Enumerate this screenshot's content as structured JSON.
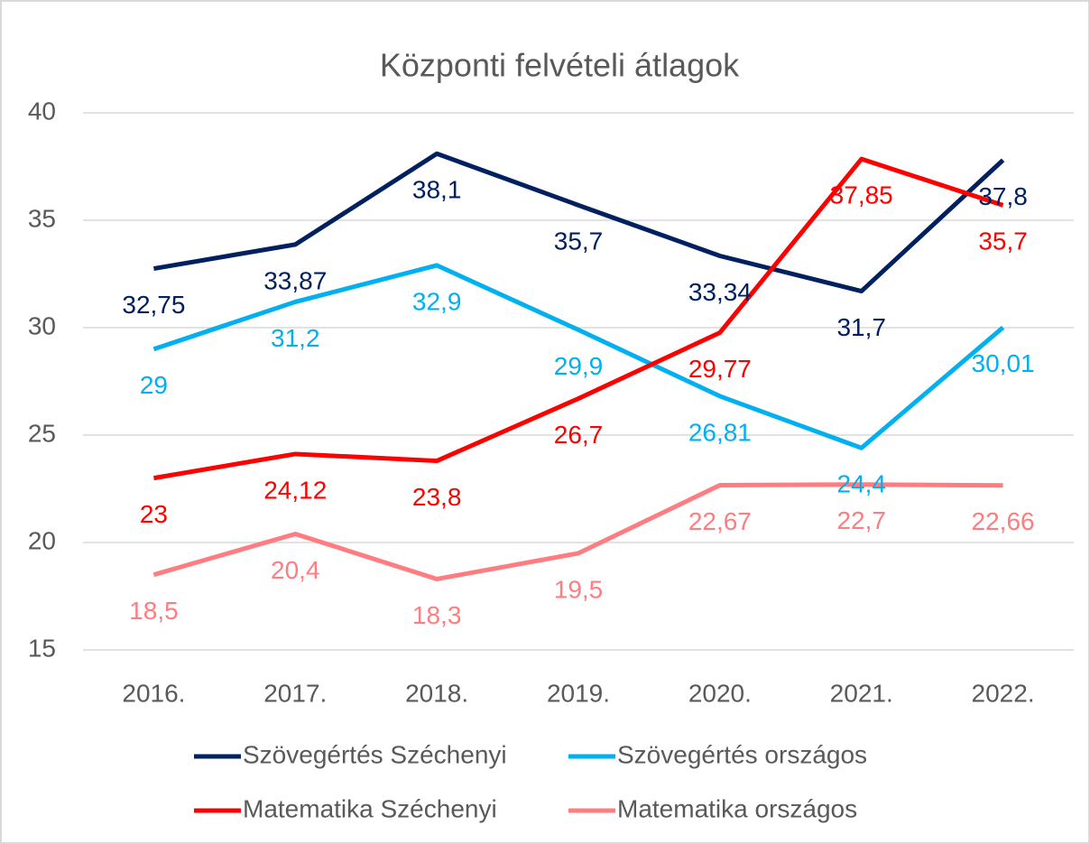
{
  "chart_data": {
    "type": "line",
    "title": "Központi felvételi átlagok",
    "categories": [
      "2016.",
      "2017.",
      "2018.",
      "2019.",
      "2020.",
      "2021.",
      "2022."
    ],
    "series": [
      {
        "name": "Szövegértés Széchenyi",
        "color": "#002060",
        "values": [
          32.75,
          33.87,
          38.1,
          35.7,
          33.34,
          31.7,
          37.8
        ],
        "value_labels": [
          "32,75",
          "33,87",
          "38,1",
          "35,7",
          "33,34",
          "31,7",
          "37,8"
        ]
      },
      {
        "name": "Szövegértés országos",
        "color": "#00b0f0",
        "values": [
          29,
          31.2,
          32.9,
          29.9,
          26.81,
          24.4,
          30.01
        ],
        "value_labels": [
          "29",
          "31,2",
          "32,9",
          "29,9",
          "26,81",
          "24,4",
          "30,01"
        ]
      },
      {
        "name": "Matematika Széchenyi",
        "color": "#ff0000",
        "values": [
          23,
          24.12,
          23.8,
          26.7,
          29.77,
          37.85,
          35.7
        ],
        "value_labels": [
          "23",
          "24,12",
          "23,8",
          "26,7",
          "29,77",
          "37,85",
          "35,7"
        ]
      },
      {
        "name": "Matematika országos",
        "color": "#ff7c80",
        "values": [
          18.5,
          20.4,
          18.3,
          19.5,
          22.67,
          22.7,
          22.66
        ],
        "value_labels": [
          "18,5",
          "20,4",
          "18,3",
          "19,5",
          "22,67",
          "22,7",
          "22,66"
        ]
      }
    ],
    "ylim": [
      15,
      40
    ],
    "yticks": [
      15,
      20,
      25,
      30,
      35,
      40
    ],
    "grid": true,
    "legend": "bottom"
  }
}
